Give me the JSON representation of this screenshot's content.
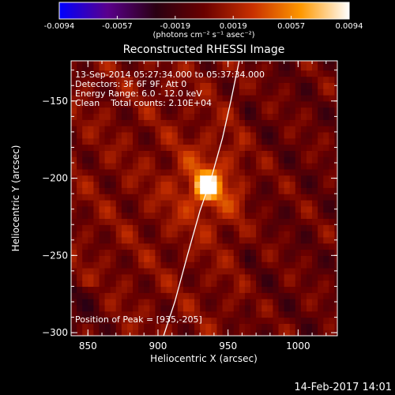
{
  "chart_data": {
    "type": "heatmap",
    "title": "Reconstructed RHESSI Image",
    "colorbar": {
      "ticks": [
        "-0.0094",
        "-0.0057",
        "-0.0019",
        "0.0019",
        "0.0057",
        "0.0094"
      ],
      "unit_label": "(photons cm⁻² s⁻¹ asec⁻²)",
      "range": [
        -0.0094,
        0.0094
      ]
    },
    "xlabel": "Heliocentric X (arcsec)",
    "ylabel": "Heliocentric Y (arcsec)",
    "xlim": [
      838,
      1028
    ],
    "ylim": [
      -302,
      -124
    ],
    "xticks": [
      {
        "value": 850,
        "label": "850"
      },
      {
        "value": 900,
        "label": "900"
      },
      {
        "value": 950,
        "label": "950"
      },
      {
        "value": 1000,
        "label": "1000"
      }
    ],
    "yticks": [
      {
        "value": -150,
        "label": "−150"
      },
      {
        "value": -200,
        "label": "−200"
      },
      {
        "value": -250,
        "label": "−250"
      },
      {
        "value": -300,
        "label": "−300"
      }
    ],
    "peak": {
      "x": 935,
      "y": -205,
      "value": 0.0094
    },
    "limb_curve": [
      [
        904,
        -302
      ],
      [
        912,
        -280
      ],
      [
        921,
        -250
      ],
      [
        930,
        -221
      ],
      [
        938,
        -200
      ],
      [
        946,
        -174
      ],
      [
        952,
        -150
      ],
      [
        958,
        -124
      ]
    ],
    "annotations": {
      "time": "13-Sep-2014 05:27:34.000 to 05:37:34.000",
      "detectors": "Detectors: 3F 6F 9F, Att 0",
      "energy": "Energy Range: 6.0 - 12.0 keV",
      "clean": "Clean    Total counts: 2.10E+04",
      "peak_text": "Position of Peak = [935,-205]"
    },
    "colors": {
      "background": "#000000",
      "colormap": [
        "#0000ff",
        "#5a008c",
        "#2a0012",
        "#6a0000",
        "#c83000",
        "#ff9800",
        "#ffffff"
      ]
    }
  },
  "footer": {
    "timestamp": "14-Feb-2017 14:01"
  }
}
